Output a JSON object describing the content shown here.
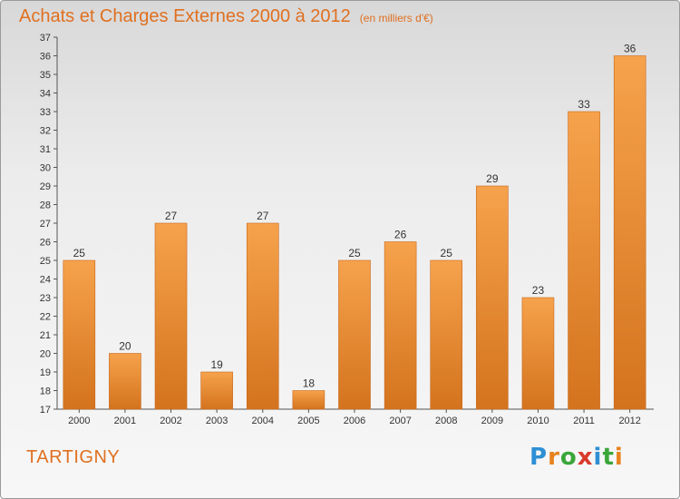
{
  "header": {
    "title": "Achats et Charges Externes 2000 à 2012",
    "unit": "(en milliers d'€)"
  },
  "commune": "TARTIGNY",
  "logo": {
    "text": "Proxiti",
    "letter_colors": [
      "#2e8fd4",
      "#e8821e",
      "#3aa63a",
      "#d93a2b",
      "#2e8fd4",
      "#3aa63a",
      "#e8821e"
    ]
  },
  "colors": {
    "bar_light": "#f6a24c",
    "bar_dark": "#d4731e",
    "accent": "#e07020"
  },
  "chart_data": {
    "type": "bar",
    "categories": [
      "2000",
      "2001",
      "2002",
      "2003",
      "2004",
      "2005",
      "2006",
      "2007",
      "2008",
      "2009",
      "2010",
      "2011",
      "2012"
    ],
    "values": [
      25,
      20,
      27,
      19,
      27,
      18,
      25,
      26,
      25,
      29,
      23,
      33,
      36
    ],
    "ylim": [
      17,
      37
    ],
    "yticks": [
      17,
      18,
      19,
      20,
      21,
      22,
      23,
      24,
      25,
      26,
      27,
      28,
      29,
      30,
      31,
      32,
      33,
      34,
      35,
      36,
      37
    ],
    "grid": false,
    "data_labels": true
  }
}
